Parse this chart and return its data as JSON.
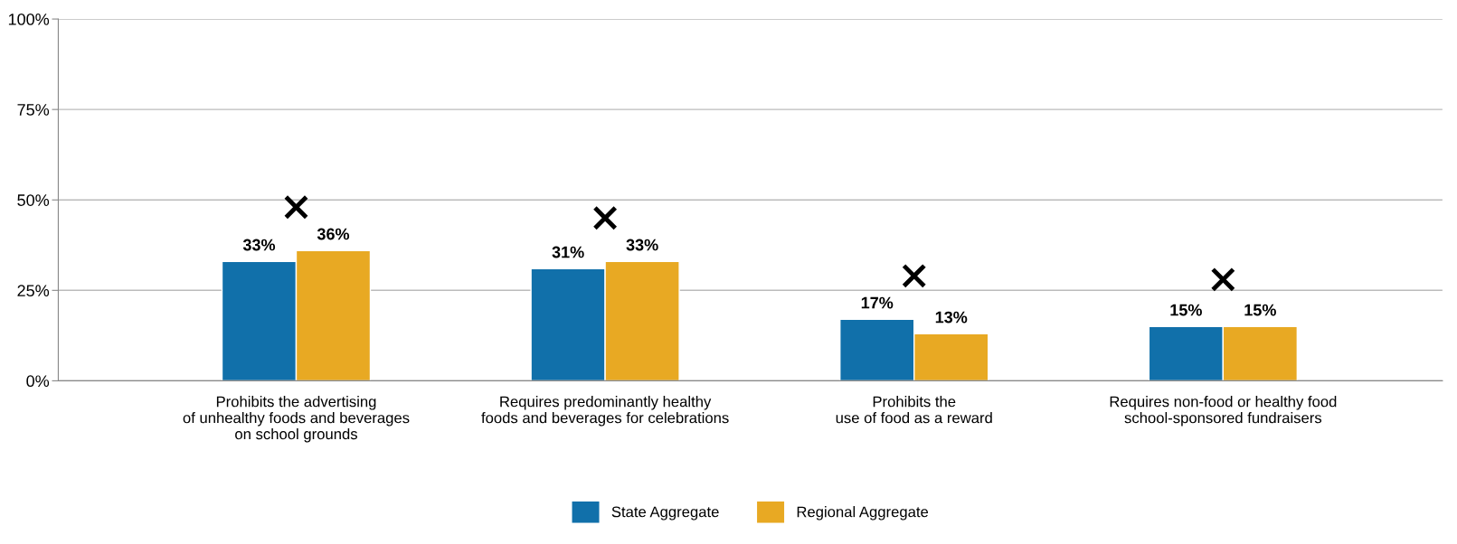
{
  "chart_data": {
    "type": "bar",
    "categories": [
      "Prohibits the advertising\nof unhealthy foods and beverages\non school grounds",
      "Requires predominantly healthy\nfoods and beverages for celebrations",
      "Prohibits the\nuse of food as a reward",
      "Requires non-food or healthy food\nschool-sponsored fundraisers"
    ],
    "series": [
      {
        "name": "State Aggregate",
        "color": "#1170aa",
        "values": [
          33,
          31,
          17,
          15
        ],
        "value_labels": [
          "33%",
          "31%",
          "17%",
          "15%"
        ]
      },
      {
        "name": "Regional Aggregate",
        "color": "#e8a923",
        "values": [
          36,
          33,
          13,
          15
        ],
        "value_labels": [
          "36%",
          "33%",
          "13%",
          "15%"
        ]
      },
      {
        "type": "scatter",
        "marker": "cross",
        "color": "#000000",
        "x": [
          "Prohibits the advertising\nof unhealthy foods and beverages\non school grounds",
          "Requires predominantly healthy\nfoods and beverages for celebrations",
          "Prohibits the\nuse of food as a reward",
          "Requires non-food or healthy food\nschool-sponsored fundraisers"
        ],
        "values": [
          48,
          45,
          29,
          28
        ]
      }
    ],
    "ylim": [
      0,
      100
    ],
    "yticks": [
      {
        "value": 0,
        "label": "0%"
      },
      {
        "value": 25,
        "label": "25%"
      },
      {
        "value": 50,
        "label": "50%"
      },
      {
        "value": 75,
        "label": "75%"
      },
      {
        "value": 100,
        "label": "100%"
      }
    ],
    "grid": "y",
    "legend": "bottom"
  }
}
